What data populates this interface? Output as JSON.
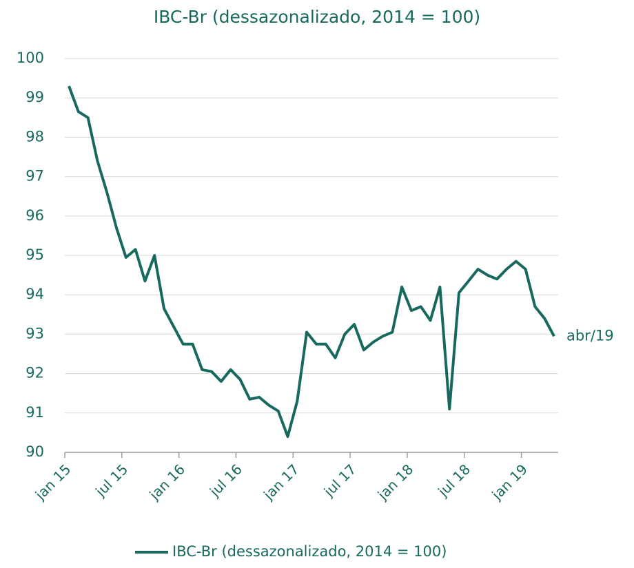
{
  "chart_data": {
    "type": "line",
    "title": "IBC-Br (dessazonalizado, 2014 = 100)",
    "annotation": "abr/19",
    "categories": [
      "jan 15",
      null,
      null,
      null,
      null,
      null,
      "jul 15",
      null,
      null,
      null,
      null,
      null,
      "jan 16",
      null,
      null,
      null,
      null,
      null,
      "jul 16",
      null,
      null,
      null,
      null,
      null,
      "jan 17",
      null,
      null,
      null,
      null,
      null,
      "jul 17",
      null,
      null,
      null,
      null,
      null,
      "jan 18",
      null,
      null,
      null,
      null,
      null,
      "jul 18",
      null,
      null,
      null,
      null,
      null,
      "jan 19",
      null,
      null,
      null
    ],
    "series": [
      {
        "name": "IBC-Br (dessazonalizado, 2014 = 100)",
        "color": "#17695f",
        "values": [
          99.3,
          98.65,
          98.5,
          97.4,
          96.6,
          95.7,
          94.95,
          95.15,
          94.35,
          95.0,
          93.65,
          93.2,
          92.75,
          92.75,
          92.1,
          92.05,
          91.8,
          92.1,
          91.85,
          91.35,
          91.4,
          91.2,
          91.05,
          90.4,
          91.3,
          93.05,
          92.75,
          92.75,
          92.4,
          93.0,
          93.25,
          92.6,
          92.8,
          92.95,
          93.05,
          94.2,
          93.6,
          93.7,
          93.35,
          94.2,
          91.1,
          94.05,
          94.35,
          94.65,
          94.5,
          94.4,
          94.65,
          94.85,
          94.65,
          93.7,
          93.4,
          92.95
        ]
      }
    ],
    "ylim": [
      90,
      100
    ],
    "yticks": [
      90,
      91,
      92,
      93,
      94,
      95,
      96,
      97,
      98,
      99,
      100
    ],
    "grid": true,
    "legend": "bottom"
  }
}
